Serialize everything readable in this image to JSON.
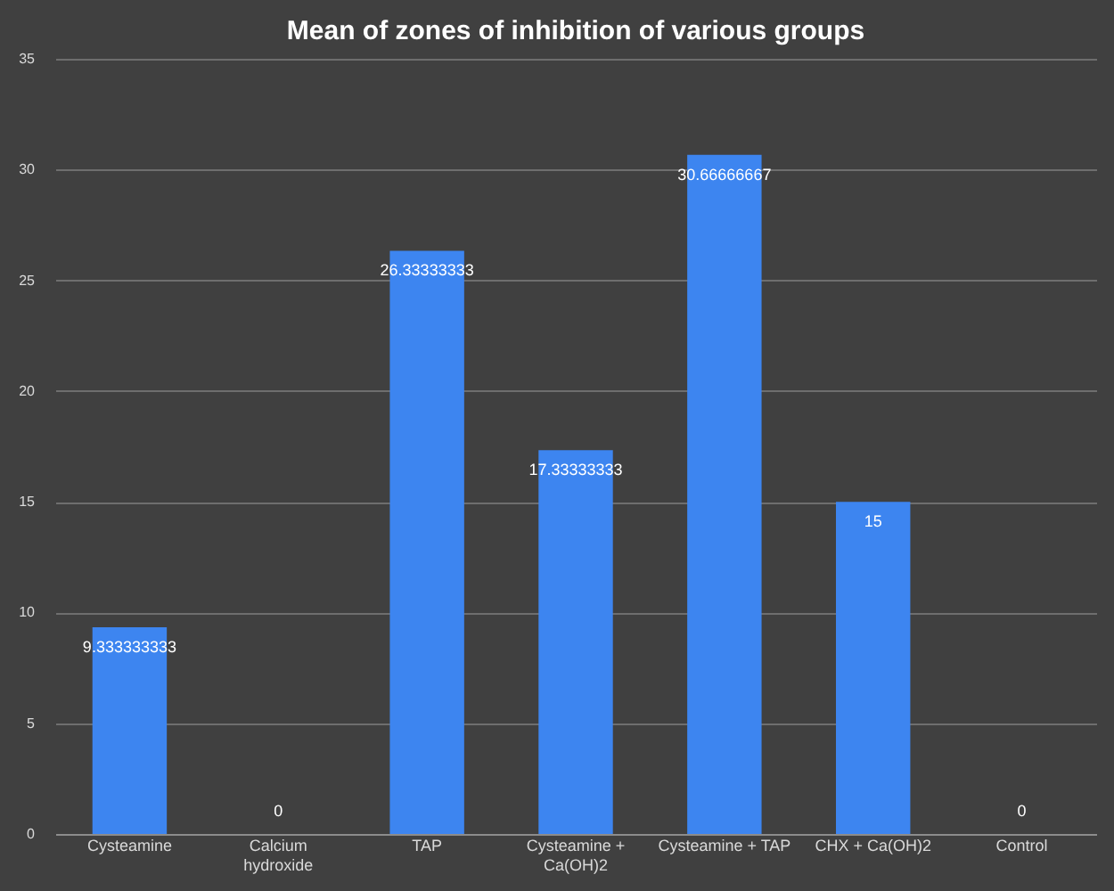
{
  "chart_data": {
    "type": "bar",
    "title": "Mean of zones of inhibition of various groups",
    "categories": [
      "Cysteamine",
      "Calcium hydroxide",
      "TAP",
      "Cysteamine + Ca(OH)2",
      "Cysteamine + TAP",
      "CHX + Ca(OH)2",
      "Control"
    ],
    "values": [
      9.333333333,
      0,
      26.33333333,
      17.33333333,
      30.66666667,
      15,
      0
    ],
    "color": "#3d85f0",
    "ylim": [
      0,
      35
    ],
    "yticks": [
      0,
      5,
      10,
      15,
      20,
      25,
      30,
      35
    ],
    "grid": "y",
    "data_labels": true
  }
}
